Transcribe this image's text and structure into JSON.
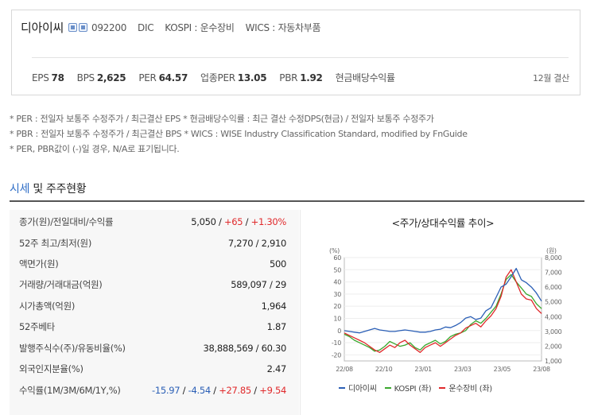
{
  "header": {
    "company": "디아이씨",
    "code": "092200",
    "code_short": "DIC",
    "market": "KOSPI : 운수장비",
    "wics": "WICS : 자동차부품"
  },
  "metrics": [
    {
      "label": "EPS",
      "value": "78"
    },
    {
      "label": "BPS",
      "value": "2,625"
    },
    {
      "label": "PER",
      "value": "64.57"
    },
    {
      "label": "업종PER",
      "value": "13.05"
    },
    {
      "label": "PBR",
      "value": "1.92"
    },
    {
      "label": "현금배당수익률",
      "value": ""
    }
  ],
  "fiscal_label": "12월 결산",
  "notes": [
    "* PER : 전일자 보통주 수정주가 / 최근결산 EPS * 현금배당수익률 : 최근 결산 수정DPS(현금) / 전일자 보통주 수정주가",
    "* PBR : 전일자 보통주 수정주가 / 최근결산 BPS * WICS : WISE Industry Classification Standard, modified by FnGuide",
    "* PER, PBR값이 (-)일 경우, N/A로 표기됩니다."
  ],
  "section": {
    "accent": "시세",
    "rest": " 및 주주현황"
  },
  "table": {
    "row0": {
      "label": "종가(원)/전일대비/수익률",
      "v1": "5,050",
      "sep1": " / ",
      "v2": "+65",
      "sep2": " / ",
      "v3": "+1.30%"
    },
    "row1": {
      "label": "52주 최고/최저(원)",
      "value": "7,270 / 2,910"
    },
    "row2": {
      "label": "액면가(원)",
      "value": "500"
    },
    "row3": {
      "label": "거래량/거래대금(억원)",
      "value": "589,097 / 29"
    },
    "row4": {
      "label": "시가총액(억원)",
      "value": "1,964"
    },
    "row5": {
      "label": "52주베타",
      "value": "1.87"
    },
    "row6": {
      "label": "발행주식수(주)/유동비율(%)",
      "value": "38,888,569 / 60.30"
    },
    "row7": {
      "label": "외국인지분율(%)",
      "value": "2.47"
    },
    "row8": {
      "label": "수익률(1M/3M/6M/1Y,%)",
      "r1": "-15.97",
      "r2": "-4.54",
      "r3": "+27.85",
      "r4": "+9.54",
      "sep": " / "
    }
  },
  "chart_data": {
    "type": "line",
    "title": "<주가/상대수익률 추이>",
    "left_unit": "(%)",
    "right_unit": "(원)",
    "x_ticks": [
      "22/08",
      "22/10",
      "23/01",
      "23/03",
      "23/05",
      "23/08"
    ],
    "y_left_ticks": [
      60,
      50,
      40,
      30,
      20,
      10,
      0,
      -10,
      -20
    ],
    "y_right_ticks": [
      "8,000",
      "7,000",
      "6,000",
      "5,000",
      "4,000",
      "3,000",
      "2,000",
      "1,000"
    ],
    "ylim_left": [
      -25,
      60
    ],
    "ylim_right": [
      1000,
      8000
    ],
    "colors": {
      "price": "#2b5fb6",
      "kospi": "#3aa82e",
      "sector": "#e0292b"
    },
    "series": [
      {
        "name": "디아이씨",
        "axis": "right",
        "values": [
          3050,
          3000,
          2950,
          2900,
          3000,
          3100,
          3200,
          3100,
          3050,
          3000,
          3000,
          3050,
          3100,
          3050,
          3000,
          2950,
          2950,
          3000,
          3100,
          3150,
          3300,
          3250,
          3400,
          3600,
          3900,
          4000,
          3800,
          3900,
          4400,
          4600,
          5300,
          6000,
          6200,
          6700,
          7270,
          6500,
          6300,
          6000,
          5600,
          5050
        ]
      },
      {
        "name": "KOSPI (좌)",
        "axis": "left",
        "values": [
          -3,
          -5,
          -8,
          -10,
          -12,
          -14,
          -17,
          -16,
          -13,
          -9,
          -11,
          -13,
          -12,
          -10,
          -14,
          -16,
          -12,
          -10,
          -8,
          -11,
          -9,
          -5,
          -3,
          -2,
          0,
          5,
          8,
          6,
          10,
          15,
          20,
          30,
          42,
          46,
          40,
          35,
          30,
          28,
          22,
          18
        ]
      },
      {
        "name": "운수장비 (좌)",
        "axis": "left",
        "values": [
          -2,
          -4,
          -6,
          -8,
          -10,
          -13,
          -16,
          -18,
          -15,
          -12,
          -14,
          -10,
          -8,
          -12,
          -15,
          -18,
          -14,
          -12,
          -10,
          -13,
          -10,
          -7,
          -4,
          -2,
          2,
          4,
          6,
          3,
          8,
          12,
          18,
          28,
          44,
          50,
          40,
          30,
          26,
          25,
          18,
          14
        ]
      }
    ]
  }
}
